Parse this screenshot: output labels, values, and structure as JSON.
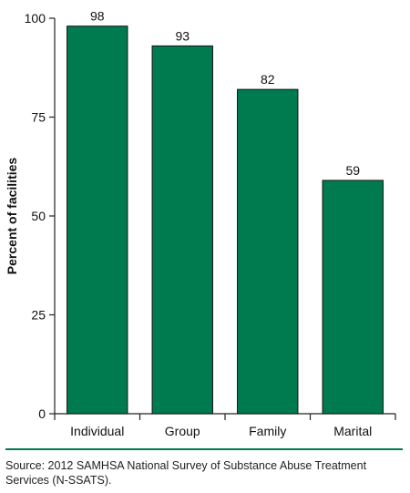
{
  "chart_data": {
    "type": "bar",
    "categories": [
      "Individual",
      "Group",
      "Family",
      "Marital"
    ],
    "values": [
      98,
      93,
      82,
      59
    ],
    "data_labels": [
      "98",
      "93",
      "82",
      "59"
    ],
    "ylabel": "Percent of facilities",
    "ylim": [
      0,
      100
    ],
    "yticks": [
      0,
      25,
      50,
      75,
      100
    ],
    "grid": false,
    "legend": "none",
    "bar_color": "#007A4F"
  },
  "source_note": "Source: 2012 SAMHSA National Survey of Substance Abuse Treatment Services (N-SSATS).",
  "colors": {
    "accent": "#007A4F",
    "axis": "#222222"
  }
}
